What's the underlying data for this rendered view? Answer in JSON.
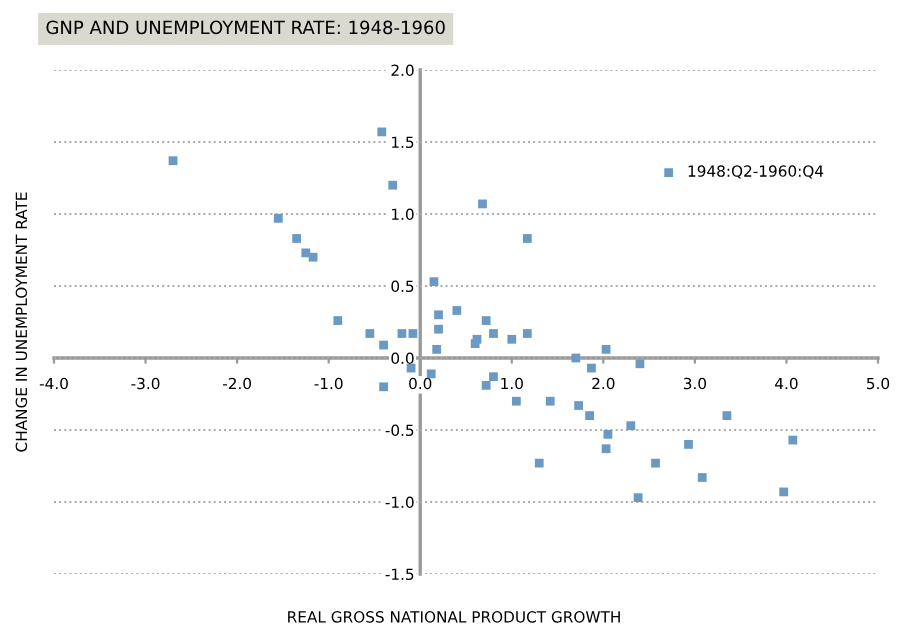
{
  "chart_data": {
    "type": "scatter",
    "title": "GNP AND UNEMPLOYMENT RATE: 1948-1960",
    "xlabel": "REAL GROSS NATIONAL PRODUCT GROWTH",
    "ylabel": "CHANGE IN UNEMPLOYMENT RATE",
    "series": [
      {
        "name": "1948:Q2-1960:Q4",
        "color": "#6a9ac4",
        "x": [
          -2.7,
          -1.55,
          -1.35,
          -1.25,
          -1.17,
          -0.9,
          -0.55,
          -0.4,
          -0.42,
          -0.3,
          -0.2,
          -0.08,
          -0.1,
          -0.4,
          0.15,
          0.2,
          0.2,
          0.18,
          0.4,
          0.6,
          0.62,
          0.68,
          0.72,
          0.8,
          1.0,
          1.17,
          1.17,
          0.12,
          0.72,
          0.8,
          1.7,
          1.87,
          2.03,
          2.4,
          1.05,
          1.42,
          1.73,
          1.85,
          2.3,
          2.05,
          2.03,
          1.3,
          2.57,
          2.93,
          3.35,
          4.07,
          3.08,
          2.38,
          3.97
        ],
        "values": [
          1.37,
          0.97,
          0.83,
          0.73,
          0.7,
          0.26,
          0.17,
          0.09,
          1.57,
          1.2,
          0.17,
          0.17,
          -0.07,
          -0.2,
          0.53,
          0.3,
          0.2,
          0.06,
          0.33,
          0.1,
          0.13,
          1.07,
          0.26,
          0.17,
          0.13,
          0.17,
          0.83,
          -0.11,
          -0.19,
          -0.13,
          0.0,
          -0.07,
          0.06,
          -0.04,
          -0.3,
          -0.3,
          -0.33,
          -0.4,
          -0.47,
          -0.53,
          -0.63,
          -0.73,
          -0.73,
          -0.6,
          -0.4,
          -0.57,
          -0.83,
          -0.97,
          -0.93
        ]
      }
    ],
    "xlim": [
      -4,
      5
    ],
    "ylim": [
      -1.5,
      2
    ],
    "xticks": [
      {
        "value": -4,
        "label": "-4.0"
      },
      {
        "value": -3,
        "label": "-3.0"
      },
      {
        "value": -2,
        "label": "-2.0"
      },
      {
        "value": -1,
        "label": "-1.0"
      },
      {
        "value": 0,
        "label": "0.0"
      },
      {
        "value": 1,
        "label": "1.0"
      },
      {
        "value": 2,
        "label": "2.0"
      },
      {
        "value": 3,
        "label": "3.0"
      },
      {
        "value": 4,
        "label": "4.0"
      },
      {
        "value": 5,
        "label": "5.0"
      }
    ],
    "yticks": [
      {
        "value": -1.5,
        "label": "-1.5"
      },
      {
        "value": -1,
        "label": "-1.0"
      },
      {
        "value": -0.5,
        "label": "-0.5"
      },
      {
        "value": 0,
        "label": "0.0"
      },
      {
        "value": 0.5,
        "label": "0.5"
      },
      {
        "value": 1,
        "label": "1.0"
      },
      {
        "value": 1.5,
        "label": "1.5"
      },
      {
        "value": 2,
        "label": "2.0"
      }
    ],
    "grid": "y",
    "legend": "top right",
    "marker": "square"
  }
}
